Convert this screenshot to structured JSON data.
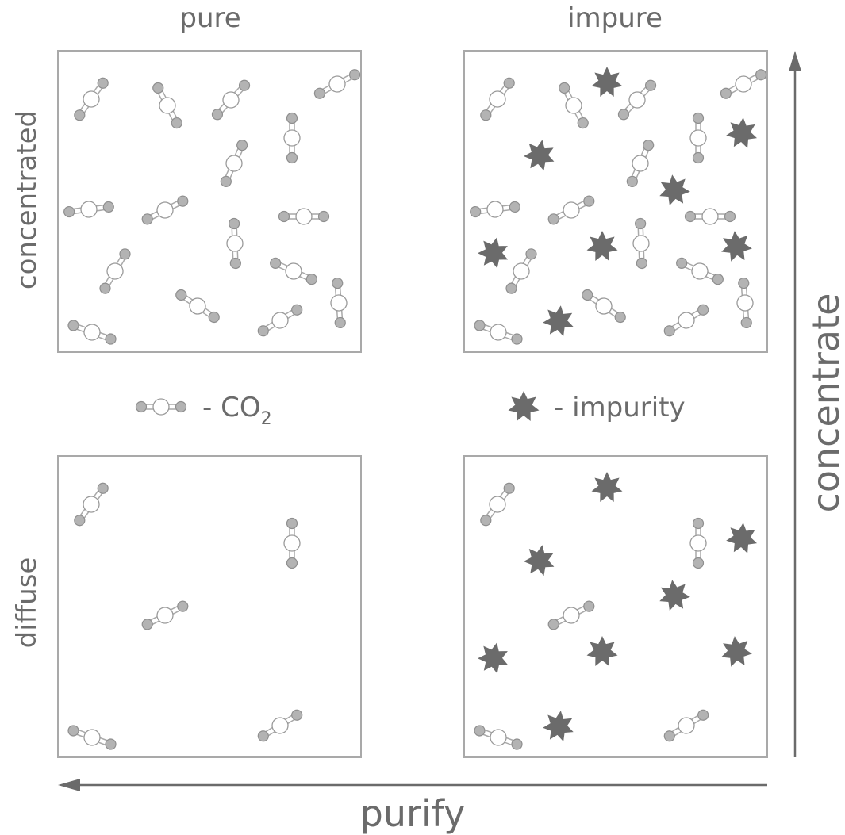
{
  "colors": {
    "text": "#6b6b6b",
    "panel_border": "#a9a9a9",
    "oxygen_atom": "#b3b3b3",
    "carbon_atom": "#ffffff",
    "impurity": "#6b6b6b",
    "arrow": "#6b6b6b"
  },
  "labels": {
    "col_pure": "pure",
    "col_impure": "impure",
    "row_concentrated": "concentrated",
    "row_diffuse": "diffuse",
    "axis_concentrate": "concentrate",
    "axis_purify": "purify",
    "legend_co2_prefix": "- CO",
    "legend_co2_sub": "2",
    "legend_impurity": "- impurity"
  },
  "icons": {
    "co2_molecule": "co2-molecule-icon",
    "impurity": "impurity-star-icon"
  }
}
